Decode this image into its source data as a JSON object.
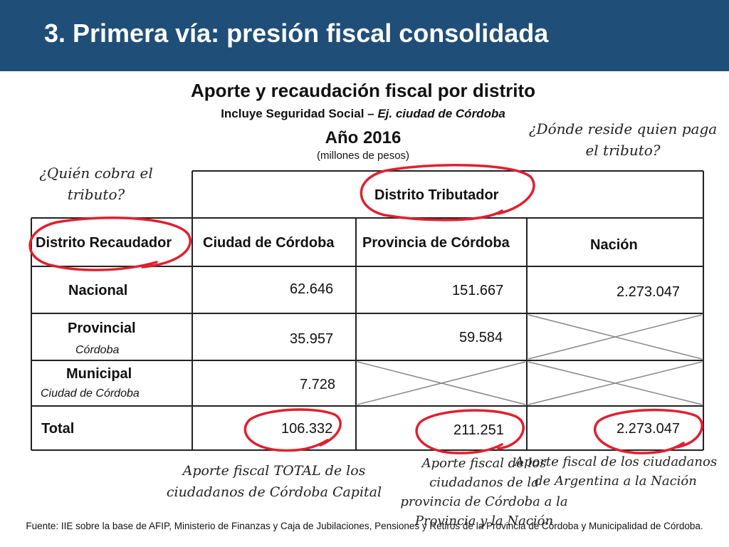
{
  "slide": {
    "title": "3. Primera vía: presión fiscal consolidada",
    "chart_title": "Aporte y recaudación fiscal por distrito",
    "subtitle_plain": "Incluye Seguridad Social – ",
    "subtitle_italic": "Ej. ciudad de Córdoba",
    "year": "Año 2016",
    "units": "(millones de pesos)",
    "accent_color": "#1f4e79",
    "annotation_color": "#e02030"
  },
  "annotations": {
    "who_collects": "¿Quién cobra el tributo?",
    "where_payer": "¿Dónde reside quien paga el tributo?",
    "note_city": "Aporte fiscal TOTAL de los ciudadanos de Córdoba Capital",
    "note_province": "Aporte fiscal de los ciudadanos de la provincia de Córdoba a la Provincia y la Nación",
    "note_nation": "Aporte fiscal de los ciudadanos de Argentina a la Nación"
  },
  "table": {
    "top_header": "Distrito Tributador",
    "row_header_label": "Distrito Recaudador",
    "columns": [
      "Ciudad de Córdoba",
      "Provincia de Córdoba",
      "Nación"
    ],
    "rows": [
      {
        "label": "Nacional",
        "sublabel": "",
        "values": [
          "62.646",
          "151.667",
          "2.273.047"
        ]
      },
      {
        "label": "Provincial",
        "sublabel": "Córdoba",
        "values": [
          "35.957",
          "59.584",
          ""
        ]
      },
      {
        "label": "Municipal",
        "sublabel": "Ciudad de Córdoba",
        "values": [
          "7.728",
          "",
          ""
        ]
      },
      {
        "label": "Total",
        "sublabel": "",
        "values": [
          "106.332",
          "211.251",
          "2.273.047"
        ]
      }
    ]
  },
  "footer": "Fuente: IIE sobre la base de AFIP, Ministerio de Finanzas y Caja de Jubilaciones, Pensiones y Retiros de la Provincia de Córdoba y Municipalidad de Córdoba."
}
